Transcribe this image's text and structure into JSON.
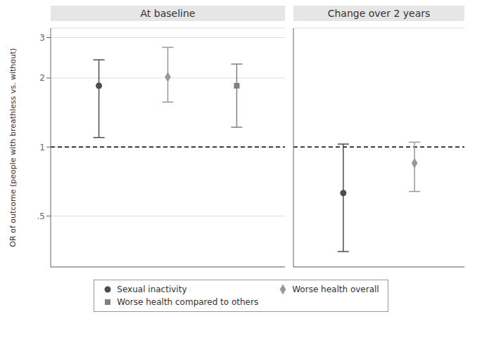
{
  "chart_data": [
    {
      "type": "scatter",
      "title": "At baseline",
      "ylabel": "OR of outcome (people with breathless vs. without)",
      "categories": [
        null,
        null,
        null
      ],
      "log": "y",
      "ylim": [
        0.3,
        3.3
      ],
      "yticks": [
        {
          "value": 0.5,
          "label": ".5"
        },
        1,
        2,
        3
      ],
      "grid": true,
      "tick_labels": "y",
      "legend": "bottom",
      "reference_lines": [
        1
      ],
      "series": [
        {
          "name": "Sexual inactivity",
          "color": "#4d4d4d",
          "marker": "circle",
          "values": [
            1.85,
            null,
            null
          ],
          "ci_low": [
            1.1,
            null,
            null
          ],
          "ci_high": [
            2.4,
            null,
            null
          ]
        },
        {
          "name": "Worse health overall",
          "color": "#999999",
          "marker": "diamond",
          "values": [
            null,
            2.02,
            null
          ],
          "ci_low": [
            null,
            1.57,
            null
          ],
          "ci_high": [
            null,
            2.72,
            null
          ]
        },
        {
          "name": "Worse health compared to others",
          "color": "#808080",
          "marker": "square",
          "values": [
            null,
            null,
            1.85
          ],
          "ci_low": [
            null,
            null,
            1.22
          ],
          "ci_high": [
            null,
            null,
            2.3
          ]
        }
      ]
    },
    {
      "type": "scatter",
      "title": "Change over 2 years",
      "categories": [
        null,
        null
      ],
      "log": "y",
      "ylim": [
        0.3,
        3.3
      ],
      "yticks": [
        {
          "value": 0.5,
          "label": ".5"
        },
        1,
        2,
        3
      ],
      "grid": true,
      "tick_labels": false,
      "legend": "bottom",
      "reference_lines": [
        1
      ],
      "series": [
        {
          "name": "Sexual inactivity",
          "color": "#4d4d4d",
          "marker": "circle",
          "values": [
            0.63,
            null
          ],
          "ci_low": [
            0.35,
            null
          ],
          "ci_high": [
            1.03,
            null
          ]
        },
        {
          "name": "Worse health overall",
          "color": "#999999",
          "marker": "diamond",
          "values": [
            null,
            0.85
          ],
          "ci_low": [
            null,
            0.64
          ],
          "ci_high": [
            null,
            1.05
          ]
        }
      ]
    }
  ]
}
